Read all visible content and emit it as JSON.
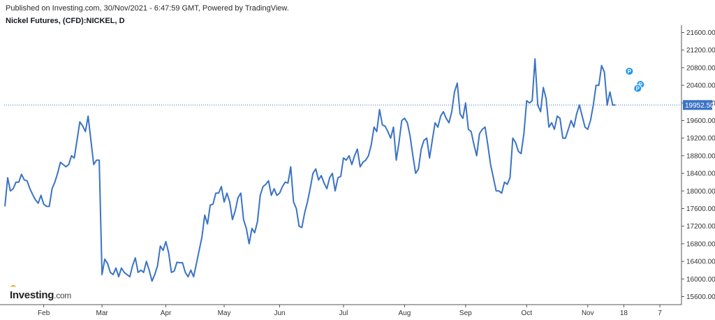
{
  "header": {
    "published": "Published on Investing.com, 30/Nov/2021 - 6:47:59 GMT, Powered by TradingView.",
    "title": "Nickel Futures, (CFD):NICKEL, D"
  },
  "logo": {
    "brand": "Investing",
    "suffix": ".com"
  },
  "colors": {
    "line": "#3a73c6",
    "price_line": "#3a73c6",
    "price_label_bg": "#3a73c6",
    "marker": "#2196f3"
  },
  "chart_data": {
    "type": "line",
    "title": "Nickel Futures, (CFD):NICKEL, D",
    "xlabel": "",
    "ylabel": "",
    "ylim": [
      15400,
      21800
    ],
    "yticks": [
      15600,
      16000,
      16400,
      16800,
      17200,
      17600,
      18000,
      18400,
      18800,
      19200,
      19600,
      20000,
      20400,
      20800,
      21200,
      21600
    ],
    "ytick_labels": [
      "15600.00",
      "16000.00",
      "16400.00",
      "16800.00",
      "17200.00",
      "17600.00",
      "18000.00",
      "18400.00",
      "18800.00",
      "19200.00",
      "19600.00",
      "20000.00",
      "20400.00",
      "20800.00",
      "21200.00",
      "21600.00"
    ],
    "xlim": [
      0,
      239
    ],
    "x_tick_labels": [
      {
        "label": "Feb",
        "x": 14
      },
      {
        "label": "Mar",
        "x": 35
      },
      {
        "label": "Apr",
        "x": 58
      },
      {
        "label": "May",
        "x": 79
      },
      {
        "label": "Jun",
        "x": 99
      },
      {
        "label": "Jul",
        "x": 122
      },
      {
        "label": "Aug",
        "x": 144
      },
      {
        "label": "Sep",
        "x": 166
      },
      {
        "label": "Oct",
        "x": 188
      },
      {
        "label": "Nov",
        "x": 210
      },
      {
        "label": "18",
        "x": 223
      },
      {
        "label": "7",
        "x": 236
      }
    ],
    "grid": false,
    "last_price": 19952.5,
    "last_price_label": "19952.50",
    "markers": [
      {
        "label": "P",
        "x": 225,
        "y": 20720
      },
      {
        "label": "P",
        "x": 229,
        "y": 20420
      },
      {
        "label": "P",
        "x": 228,
        "y": 20330
      }
    ],
    "series": [
      {
        "values": [
          17650,
          18300,
          18000,
          18050,
          18200,
          18200,
          18380,
          18250,
          18230,
          18050,
          17920,
          17800,
          17720,
          17900,
          17700,
          17650,
          17650,
          18050,
          18200,
          18400,
          18650,
          18600,
          18550,
          18600,
          18800,
          18750,
          19150,
          19570,
          19480,
          19350,
          19700,
          19150,
          18600,
          18700,
          18700,
          16100,
          16450,
          16350,
          16150,
          16100,
          16250,
          16050,
          16250,
          16150,
          16100,
          16050,
          16300,
          16480,
          16150,
          16200,
          16150,
          16400,
          16200,
          15950,
          16100,
          16300,
          16750,
          16650,
          16850,
          16600,
          16150,
          16180,
          16380,
          16370,
          16370,
          16150,
          16050,
          16200,
          16050,
          16350,
          16650,
          16950,
          17450,
          17250,
          17680,
          17700,
          17950,
          17950,
          18100,
          17750,
          17950,
          17750,
          17350,
          17550,
          17850,
          17950,
          17350,
          17150,
          16800,
          17150,
          17050,
          17300,
          17900,
          18100,
          18150,
          18230,
          17900,
          18050,
          17900,
          17950,
          18100,
          18200,
          18180,
          18550,
          17750,
          17600,
          17200,
          17170,
          17500,
          17750,
          18050,
          18400,
          18500,
          18250,
          18350,
          18180,
          18050,
          18300,
          18400,
          18000,
          18300,
          18330,
          18750,
          18700,
          18800,
          18600,
          18800,
          18950,
          18550,
          18650,
          18700,
          18800,
          19050,
          19450,
          19350,
          19850,
          19500,
          19470,
          19350,
          19200,
          19450,
          18700,
          19100,
          19600,
          19650,
          19550,
          19250,
          18800,
          18400,
          18500,
          18950,
          19150,
          19200,
          18750,
          19150,
          19550,
          19450,
          19700,
          19800,
          19650,
          19550,
          19800,
          20250,
          20450,
          19750,
          19650,
          20000,
          19400,
          19350,
          19050,
          18800,
          19300,
          19400,
          19450,
          19050,
          18600,
          18300,
          18000,
          18000,
          17950,
          18200,
          18150,
          18300,
          19200,
          19100,
          18900,
          18850,
          19300,
          20050,
          20000,
          20050,
          21000,
          19950,
          19800,
          20350,
          20100,
          19450,
          19550,
          19400,
          19700,
          19650,
          19200,
          19200,
          19400,
          19600,
          19450,
          19750,
          19950,
          19700,
          19450,
          19400,
          19600,
          19950,
          20400,
          20400,
          20850,
          20700,
          19950,
          20250,
          19950,
          19952.5
        ]
      }
    ]
  }
}
